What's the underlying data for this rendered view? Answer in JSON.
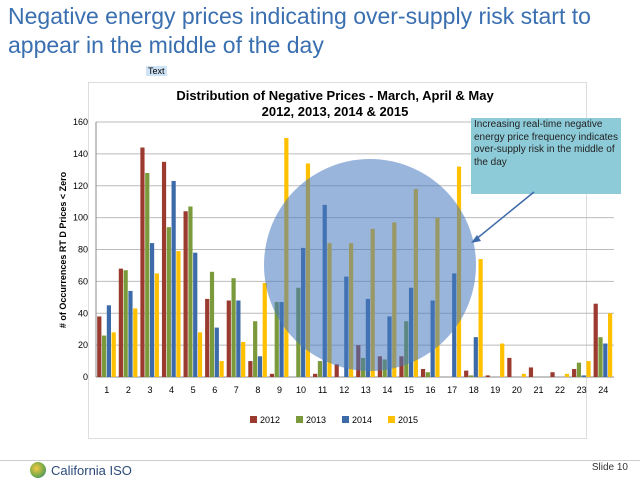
{
  "slide": {
    "title": "Negative energy prices indicating over-supply risk start to appear in the middle of the day",
    "text_label": "Text",
    "logo": "California ISO",
    "slide_number": "Slide 10"
  },
  "chart_data": {
    "type": "bar",
    "title": "Distribution  of Negative Prices - March, April & May",
    "subtitle": "2012, 2013, 2014 & 2015",
    "ylabel": "# of Occurrences RT D Prices < Zero",
    "xlabel": "",
    "ylim": [
      0,
      160
    ],
    "yticks": [
      0,
      20,
      40,
      60,
      80,
      100,
      120,
      140,
      160
    ],
    "grid": true,
    "legend": "bottom",
    "categories": [
      "1",
      "2",
      "3",
      "4",
      "5",
      "6",
      "7",
      "8",
      "9",
      "10",
      "11",
      "12",
      "13",
      "14",
      "15",
      "16",
      "17",
      "18",
      "19",
      "20",
      "21",
      "22",
      "23",
      "24"
    ],
    "series": [
      {
        "name": "2012",
        "color": "#9b3a2e",
        "values": [
          38,
          68,
          144,
          135,
          104,
          49,
          48,
          10,
          2,
          0,
          2,
          8,
          20,
          13,
          13,
          5,
          0,
          4,
          1,
          12,
          6,
          3,
          5,
          46
        ]
      },
      {
        "name": "2013",
        "color": "#7a9a3c",
        "values": [
          26,
          67,
          128,
          94,
          107,
          66,
          62,
          35,
          47,
          56,
          10,
          0,
          12,
          11,
          35,
          3,
          0,
          1,
          0,
          0,
          0,
          0,
          9,
          25
        ]
      },
      {
        "name": "2014",
        "color": "#3d6aa8",
        "values": [
          45,
          54,
          84,
          123,
          78,
          31,
          48,
          13,
          47,
          81,
          108,
          63,
          49,
          38,
          56,
          48,
          65,
          25,
          0,
          0,
          0,
          0,
          1,
          21
        ]
      },
      {
        "name": "2015",
        "color": "#ffc000",
        "values": [
          28,
          43,
          65,
          79,
          28,
          10,
          22,
          59,
          150,
          134,
          84,
          84,
          93,
          97,
          118,
          100,
          132,
          74,
          21,
          2,
          0,
          2,
          10,
          40
        ]
      }
    ],
    "annotation": "Increasing real-time negative energy price frequency indicates over-supply risk in the middle of the day"
  }
}
